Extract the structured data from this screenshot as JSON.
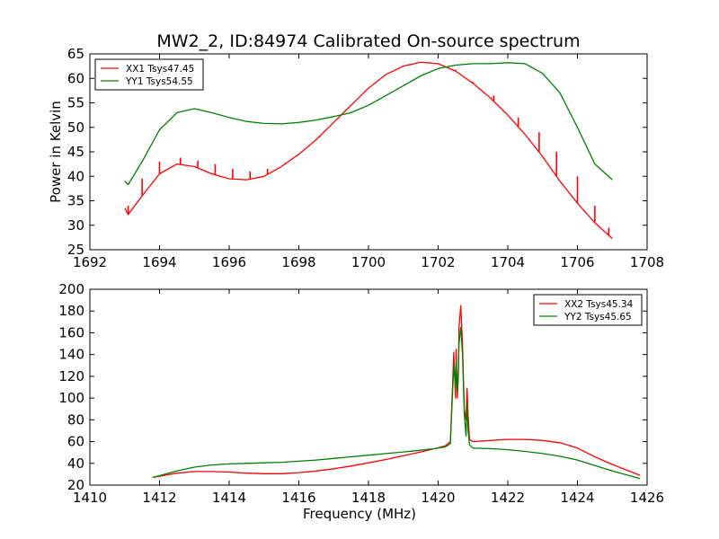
{
  "figure": {
    "title": "MW2_2, ID:84974 Calibrated On-source spectrum"
  },
  "chart_data": [
    {
      "type": "line",
      "title": "MW2_2, ID:84974 Calibrated On-source spectrum",
      "xlabel": "",
      "ylabel": "Power in Kelvin",
      "xlim": [
        1692,
        1708
      ],
      "ylim": [
        25,
        65
      ],
      "xticks": [
        1692,
        1694,
        1696,
        1698,
        1700,
        1702,
        1704,
        1706,
        1708
      ],
      "yticks": [
        25,
        30,
        35,
        40,
        45,
        50,
        55,
        60,
        65
      ],
      "grid": false,
      "legend_position": "top-left",
      "series": [
        {
          "name": "XX1 Tsys47.45",
          "color": "#ff0000",
          "x": [
            1693.0,
            1693.1,
            1693.5,
            1694.0,
            1694.5,
            1695.0,
            1695.5,
            1696.0,
            1696.5,
            1697.0,
            1697.5,
            1698.0,
            1698.5,
            1699.0,
            1699.5,
            1700.0,
            1700.5,
            1701.0,
            1701.5,
            1702.0,
            1702.5,
            1703.0,
            1703.5,
            1704.0,
            1704.5,
            1705.0,
            1705.5,
            1706.0,
            1706.5,
            1707.0
          ],
          "y": [
            33.5,
            32.2,
            36.0,
            40.5,
            42.5,
            42.0,
            40.5,
            39.5,
            39.3,
            40.0,
            42.0,
            44.5,
            47.5,
            51.0,
            54.5,
            58.0,
            60.8,
            62.5,
            63.3,
            63.0,
            61.5,
            59.0,
            56.0,
            52.5,
            48.5,
            44.0,
            39.0,
            34.5,
            30.5,
            27.3
          ],
          "spikes": [
            {
              "x": 1693.1,
              "y": 34.0
            },
            {
              "x": 1693.5,
              "y": 39.5
            },
            {
              "x": 1694.0,
              "y": 43.0
            },
            {
              "x": 1694.6,
              "y": 43.8
            },
            {
              "x": 1695.1,
              "y": 43.2
            },
            {
              "x": 1695.6,
              "y": 42.5
            },
            {
              "x": 1696.1,
              "y": 41.5
            },
            {
              "x": 1696.6,
              "y": 41.0
            },
            {
              "x": 1697.1,
              "y": 41.5
            },
            {
              "x": 1697.6,
              "y": 42.7
            },
            {
              "x": 1698.1,
              "y": 45.0
            },
            {
              "x": 1698.6,
              "y": 48.0
            },
            {
              "x": 1702.5,
              "y": 61.8
            },
            {
              "x": 1703.0,
              "y": 59.3
            },
            {
              "x": 1703.6,
              "y": 56.5
            },
            {
              "x": 1704.3,
              "y": 52.0
            },
            {
              "x": 1704.9,
              "y": 49.0
            },
            {
              "x": 1705.4,
              "y": 45.0
            },
            {
              "x": 1706.0,
              "y": 40.0
            },
            {
              "x": 1706.5,
              "y": 34.0
            },
            {
              "x": 1706.9,
              "y": 29.5
            }
          ]
        },
        {
          "name": "YY1 Tsys54.55",
          "color": "#008000",
          "x": [
            1693.0,
            1693.1,
            1693.5,
            1694.0,
            1694.5,
            1695.0,
            1695.5,
            1696.0,
            1696.5,
            1697.0,
            1697.5,
            1698.0,
            1698.5,
            1699.0,
            1699.5,
            1700.0,
            1700.5,
            1701.0,
            1701.5,
            1702.0,
            1702.5,
            1703.0,
            1703.5,
            1704.0,
            1704.5,
            1705.0,
            1705.5,
            1706.0,
            1706.5,
            1707.0
          ],
          "y": [
            39.0,
            38.3,
            43.0,
            49.5,
            53.0,
            53.8,
            53.0,
            52.0,
            51.2,
            50.8,
            50.7,
            51.0,
            51.5,
            52.2,
            53.0,
            54.5,
            56.5,
            58.5,
            60.5,
            62.0,
            62.7,
            63.0,
            63.0,
            63.2,
            63.0,
            61.0,
            57.0,
            50.0,
            42.5,
            39.3
          ]
        }
      ]
    },
    {
      "type": "line",
      "title": "",
      "xlabel": "Frequency (MHz)",
      "ylabel": "",
      "xlim": [
        1410,
        1426
      ],
      "ylim": [
        20,
        200
      ],
      "xticks": [
        1410,
        1412,
        1414,
        1416,
        1418,
        1420,
        1422,
        1424,
        1426
      ],
      "yticks": [
        20,
        40,
        60,
        80,
        100,
        120,
        140,
        160,
        180,
        200
      ],
      "grid": false,
      "legend_position": "top-right",
      "series": [
        {
          "name": "XX2 Tsys45.34",
          "color": "#ff0000",
          "x": [
            1411.8,
            1412.5,
            1413.0,
            1413.5,
            1414.0,
            1414.5,
            1415.0,
            1415.5,
            1416.0,
            1416.5,
            1417.0,
            1417.5,
            1418.0,
            1418.5,
            1419.0,
            1419.5,
            1419.9,
            1420.2,
            1420.35,
            1420.4,
            1420.45,
            1420.5,
            1420.52,
            1420.55,
            1420.58,
            1420.6,
            1420.65,
            1420.7,
            1420.75,
            1420.8,
            1420.83,
            1420.86,
            1420.9,
            1421.0,
            1421.5,
            1422.0,
            1422.5,
            1423.0,
            1423.5,
            1424.0,
            1424.5,
            1425.0,
            1425.8
          ],
          "y": [
            27.0,
            31.0,
            32.5,
            32.5,
            32.0,
            31.0,
            30.5,
            30.5,
            31.5,
            33.0,
            35.0,
            37.5,
            40.5,
            43.5,
            47.0,
            50.5,
            53.5,
            56.0,
            60.0,
            100.0,
            142.0,
            100.0,
            145.0,
            100.0,
            120.0,
            165.0,
            185.0,
            150.0,
            90.0,
            80.0,
            109.0,
            85.0,
            62.0,
            60.0,
            61.0,
            62.0,
            62.0,
            61.0,
            59.0,
            54.0,
            46.0,
            39.0,
            29.0
          ]
        },
        {
          "name": "YY2 Tsys45.65",
          "color": "#008000",
          "x": [
            1411.8,
            1412.5,
            1413.0,
            1413.5,
            1414.0,
            1414.5,
            1415.0,
            1415.5,
            1416.0,
            1416.5,
            1417.0,
            1417.5,
            1418.0,
            1418.5,
            1419.0,
            1419.5,
            1419.9,
            1420.2,
            1420.35,
            1420.4,
            1420.45,
            1420.5,
            1420.52,
            1420.55,
            1420.58,
            1420.6,
            1420.65,
            1420.7,
            1420.75,
            1420.8,
            1420.83,
            1420.86,
            1420.9,
            1421.0,
            1421.5,
            1422.0,
            1422.5,
            1423.0,
            1423.5,
            1424.0,
            1424.5,
            1425.0,
            1425.8
          ],
          "y": [
            27.0,
            33.0,
            36.5,
            38.5,
            39.5,
            40.0,
            40.5,
            41.0,
            42.0,
            43.0,
            44.5,
            46.0,
            47.5,
            49.0,
            50.5,
            52.0,
            53.5,
            55.0,
            58.0,
            95.0,
            130.0,
            110.0,
            135.0,
            105.0,
            125.0,
            150.0,
            165.0,
            140.0,
            85.0,
            65.0,
            95.0,
            70.0,
            57.0,
            54.0,
            53.5,
            52.5,
            51.0,
            49.0,
            46.5,
            43.0,
            38.0,
            33.0,
            26.0
          ]
        }
      ]
    }
  ]
}
